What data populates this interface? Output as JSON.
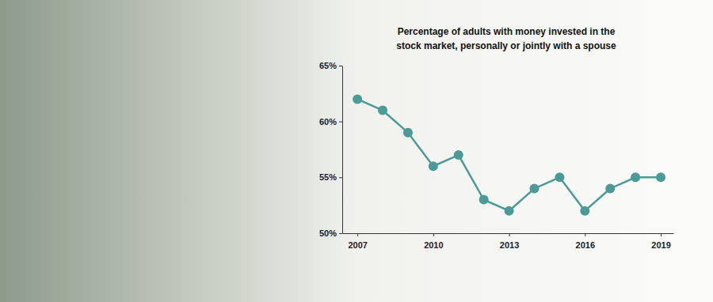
{
  "chart_data": {
    "type": "line",
    "title": [
      "Percentage of adults with money invested in the",
      "stock market, personally or jointly with a spouse"
    ],
    "x": [
      2007,
      2008,
      2009,
      2010,
      2011,
      2012,
      2013,
      2014,
      2015,
      2016,
      2017,
      2018,
      2019
    ],
    "values": [
      62,
      61,
      59,
      56,
      57,
      53,
      52,
      54,
      55,
      52,
      54,
      55,
      55
    ],
    "color": "#4b9a97",
    "marker": "circle",
    "xlim": [
      2006.4,
      2019.5
    ],
    "xticks": [
      2007,
      2010,
      2013,
      2016,
      2019
    ],
    "ylim": [
      50,
      65
    ],
    "yticks": [
      {
        "value": 50,
        "label": "50%"
      },
      {
        "value": 55,
        "label": "55%"
      },
      {
        "value": 60,
        "label": "60%"
      },
      {
        "value": 65,
        "label": "65%"
      }
    ],
    "grid": false
  }
}
